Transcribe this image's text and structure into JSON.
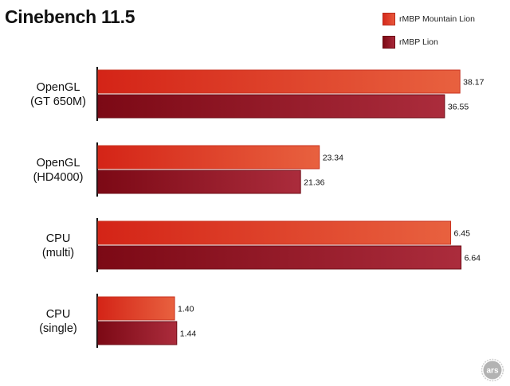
{
  "chart_data": {
    "type": "bar",
    "orientation": "horizontal",
    "title": "Cinebench 11.5",
    "xlabel": "",
    "ylabel": "",
    "categories": [
      [
        "OpenGL",
        "(GT 650M)"
      ],
      [
        "OpenGL",
        "(HD4000)"
      ],
      [
        "CPU",
        "(multi)"
      ],
      [
        "CPU",
        "(single)"
      ]
    ],
    "panels": [
      {
        "scale_max": 39.5,
        "series_values": [
          38.17,
          36.55
        ]
      },
      {
        "scale_max": 39.5,
        "series_values": [
          23.34,
          21.36
        ]
      },
      {
        "scale_max": 6.85,
        "series_values": [
          6.45,
          6.64
        ]
      },
      {
        "scale_max": 6.85,
        "series_values": [
          1.4,
          1.44
        ]
      }
    ],
    "value_labels": [
      [
        "38.17",
        "36.55"
      ],
      [
        "23.34",
        "21.36"
      ],
      [
        "6.45",
        "6.64"
      ],
      [
        "1.40",
        "1.44"
      ]
    ],
    "series": [
      {
        "name": "rMBP Mountain Lion",
        "color": "#e0432a",
        "values": [
          38.17,
          23.34,
          6.45,
          1.4
        ]
      },
      {
        "name": "rMBP Lion",
        "color": "#9c1a26",
        "values": [
          36.55,
          21.36,
          6.64,
          1.44
        ]
      }
    ],
    "grid": false,
    "legend_position": "top-right"
  },
  "logo": {
    "text": "ars",
    "icon": "ars-technica-logo"
  }
}
